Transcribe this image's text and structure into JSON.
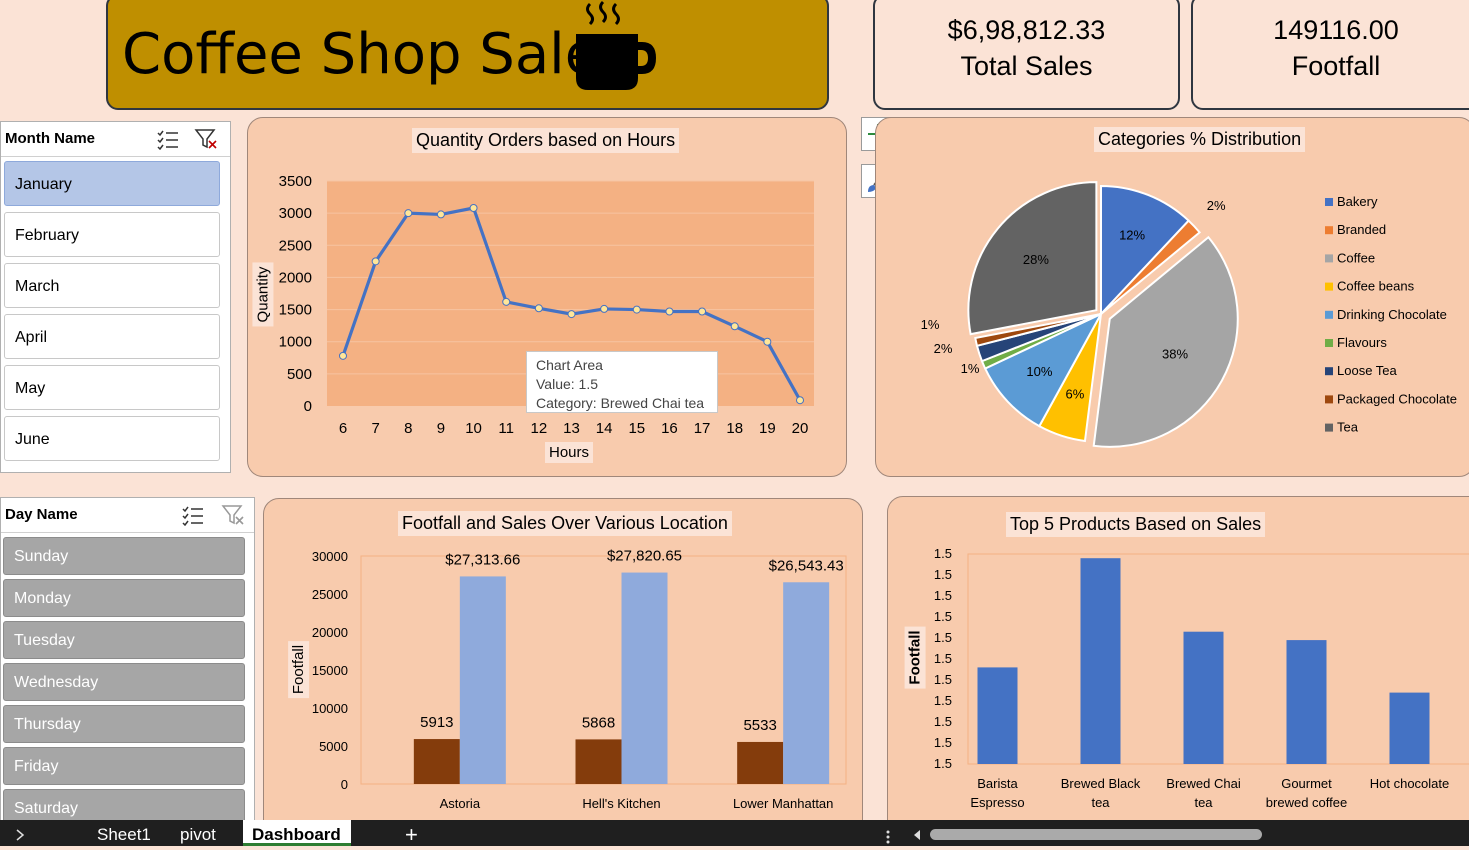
{
  "header": {
    "title": "Coffee Shop Sales"
  },
  "kpis": [
    {
      "value": "$6,98,812.33",
      "label": "Total Sales"
    },
    {
      "value": "149116.00",
      "label": "Footfall"
    }
  ],
  "month_slicer": {
    "title": "Month Name",
    "items": [
      "January",
      "February",
      "March",
      "April",
      "May",
      "June"
    ],
    "selected": "January"
  },
  "day_slicer": {
    "title": "Day Name",
    "items": [
      "Sunday",
      "Monday",
      "Tuesday",
      "Wednesday",
      "Thursday",
      "Friday",
      "Saturday"
    ]
  },
  "tooltip": {
    "line1": "Chart Area",
    "line2": "Value: 1.5",
    "line3": "Category: Brewed Chai tea"
  },
  "tabs": {
    "sheet1": "Sheet1",
    "pivot": "pivot",
    "dashboard": "Dashboard",
    "add": "+"
  },
  "colors": {
    "banner": "#bf8f00",
    "panel": "#f8cbad",
    "plot": "#f4b183",
    "line": "#4472c4",
    "brown": "#843c0c",
    "lightblue": "#8faadc",
    "bar": "#4472c4"
  },
  "chart_data": [
    {
      "type": "line",
      "title": "Quantity Orders based on Hours",
      "xlabel": "Hours",
      "ylabel": "Quantity",
      "x": [
        6,
        7,
        8,
        9,
        10,
        11,
        12,
        13,
        14,
        15,
        16,
        17,
        18,
        19,
        20
      ],
      "values": [
        780,
        2250,
        3000,
        2980,
        3080,
        1620,
        1520,
        1430,
        1510,
        1500,
        1470,
        1470,
        1240,
        1000,
        90
      ],
      "ylim": [
        0,
        3500
      ],
      "yticks": [
        0,
        500,
        1000,
        1500,
        2000,
        2500,
        3000,
        3500
      ],
      "grid": true
    },
    {
      "type": "pie",
      "title": "Categories % Distribution",
      "labels": [
        "Bakery",
        "Branded",
        "Coffee",
        "Coffee beans",
        "Drinking Chocolate",
        "Flavours",
        "Loose Tea",
        "Packaged Chocolate",
        "Tea"
      ],
      "values": [
        12,
        2,
        38,
        6,
        10,
        1,
        2,
        1,
        28
      ],
      "value_labels": [
        "12%",
        "2%",
        "38%",
        "6%",
        "10%",
        "1%",
        "2%",
        "1%",
        "28%"
      ],
      "colors": [
        "#4472c4",
        "#ed7d31",
        "#a5a5a5",
        "#ffc000",
        "#5b9bd5",
        "#70ad47",
        "#264478",
        "#9e480e",
        "#636363"
      ],
      "legend": "right"
    },
    {
      "type": "bar",
      "title": "Footfall and Sales Over Various Location",
      "ylabel": "Footfall",
      "categories": [
        "Astoria",
        "Hell's Kitchen",
        "Lower Manhattan"
      ],
      "series": [
        {
          "values": [
            5913,
            5868,
            5533
          ],
          "labels": [
            "5913",
            "5868",
            "5533"
          ],
          "color": "#843c0c"
        },
        {
          "values": [
            27313.66,
            27820.65,
            26543.43
          ],
          "labels": [
            "$27,313.66",
            "$27,820.65",
            "$26,543.43"
          ],
          "color": "#8faadc"
        }
      ],
      "ylim": [
        0,
        30000
      ],
      "yticks": [
        0,
        5000,
        10000,
        15000,
        20000,
        25000,
        30000
      ]
    },
    {
      "type": "bar",
      "title": "Top 5 Products Based on Sales",
      "ylabel": "Footfall",
      "categories": [
        "Barista Espresso",
        "Brewed Black tea",
        "Brewed Chai tea",
        "Gourmet brewed coffee",
        "Hot chocolate"
      ],
      "values": [
        0.46,
        0.98,
        0.63,
        0.59,
        0.34
      ],
      "ytick_labels": [
        "1.5",
        "1.5",
        "1.5",
        "1.5",
        "1.5",
        "1.5",
        "1.5",
        "1.5",
        "1.5",
        "1.5",
        "1.5"
      ]
    }
  ]
}
